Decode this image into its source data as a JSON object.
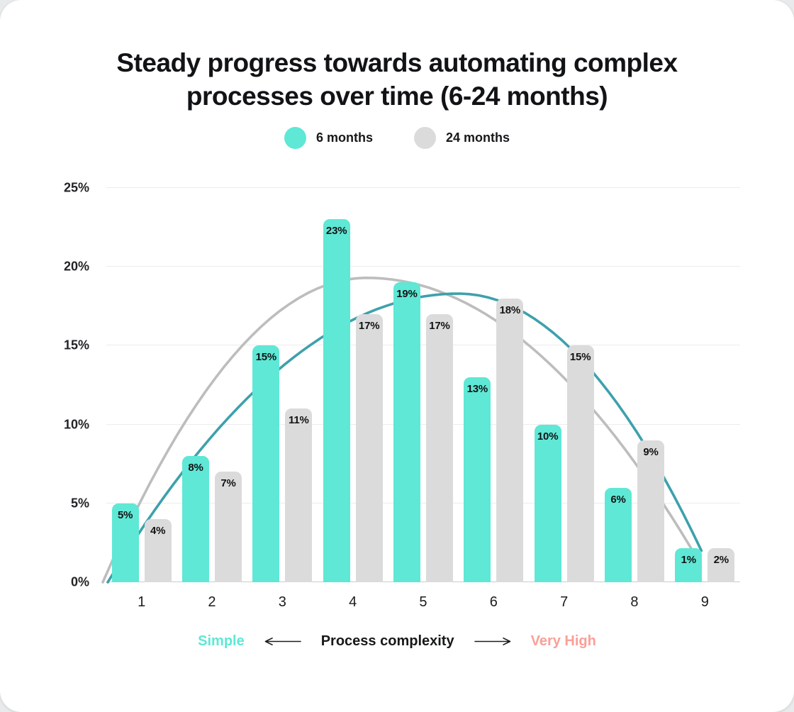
{
  "chart_data": {
    "type": "bar",
    "title": "Steady progress towards automating complex processes over time (6-24 months)",
    "title_lines": [
      "Steady progress towards automating complex",
      "processes over time (6-24 months)"
    ],
    "categories": [
      "1",
      "2",
      "3",
      "4",
      "5",
      "6",
      "7",
      "8",
      "9"
    ],
    "series": [
      {
        "name": "6 months",
        "color": "#5ee8d5",
        "values": [
          5,
          8,
          15,
          23,
          19,
          13,
          10,
          6,
          1
        ]
      },
      {
        "name": "24 months",
        "color": "#dbdbdb",
        "values": [
          4,
          7,
          11,
          17,
          17,
          18,
          15,
          9,
          2
        ]
      }
    ],
    "trend_curves": [
      {
        "series": "24 months",
        "color": "#bdbdbd",
        "start": {
          "x": 0.45,
          "y": 0
        },
        "peak": {
          "x": 4.2,
          "y": 19.3
        },
        "end": {
          "x": 8.93,
          "y": 1.2
        }
      },
      {
        "series": "6 months",
        "color": "#3da1ac",
        "start": {
          "x": 0.52,
          "y": 0
        },
        "peak": {
          "x": 5.5,
          "y": 18.3
        },
        "end": {
          "x": 8.95,
          "y": 2.0
        }
      }
    ],
    "y_axis": {
      "ticks": [
        "0%",
        "5%",
        "10%",
        "15%",
        "20%",
        "25%"
      ],
      "tick_values": [
        0,
        5,
        10,
        15,
        20,
        25
      ],
      "max": 25,
      "grid": true
    },
    "x_axis": {
      "label": "Process complexity",
      "left_label": "Simple",
      "right_label": "Very High",
      "left_color": "#5ee8d5",
      "right_color": "#fb9f97"
    },
    "value_suffix": "%",
    "legend_position": "top-center"
  },
  "legend": {
    "items": [
      {
        "label": "6 months",
        "color": "#5ee8d5"
      },
      {
        "label": "24 months",
        "color": "#dbdbdb"
      }
    ]
  }
}
